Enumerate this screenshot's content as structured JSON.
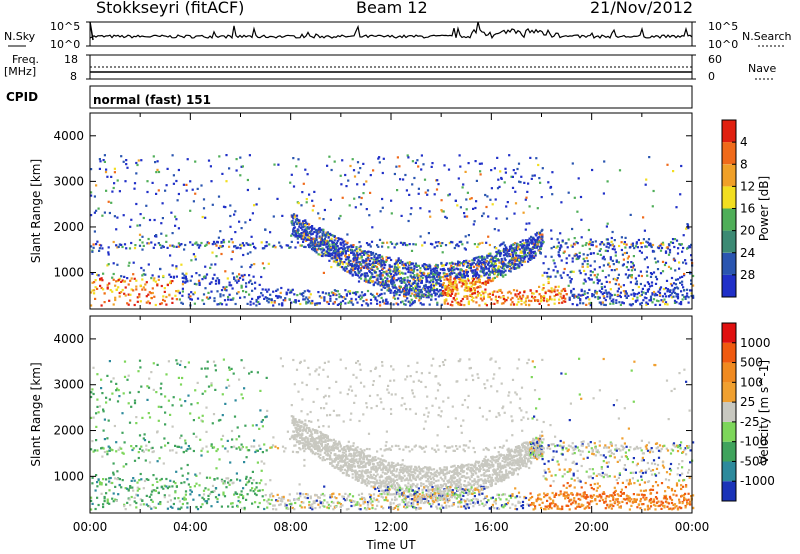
{
  "header": {
    "station": "Stokkseyri (fitACF)",
    "beam": "Beam 12",
    "date": "21/Nov/2012"
  },
  "strip": {
    "nsky_label": "N.Sky",
    "nsky_top": "10^5",
    "nsky_bottom": "10^0",
    "nsearch_label": "N.Search",
    "nsearch_top": "10^5",
    "nsearch_bottom": "10^0",
    "freq_label": "Freq.",
    "freq_unit": "[MHz]",
    "freq_top": "18",
    "freq_bottom": "8",
    "nave_label": "Nave",
    "nave_top": "60",
    "nave_bottom": "0",
    "cpid_label": "CPID",
    "cpid_value": "normal (fast) 151"
  },
  "chart_data": [
    {
      "type": "heatmap",
      "name": "Power",
      "ylabel": "Slant Range [km]",
      "xlabel": "",
      "ylim": [
        200,
        4500
      ],
      "yticks": [
        "4000",
        "3000",
        "2000",
        "1000"
      ],
      "xlim": [
        "00:00",
        "24:00"
      ],
      "colorbar": {
        "label": "Power [dB]",
        "colors": [
          "#2030c8",
          "#2a55b0",
          "#3c8a74",
          "#4fae58",
          "#f2de20",
          "#f0a028",
          "#f06a1a",
          "#e02010"
        ],
        "tick_labels": [
          "4",
          "8",
          "12",
          "16",
          "20",
          "24",
          "28"
        ]
      }
    },
    {
      "type": "heatmap",
      "name": "Velocity",
      "ylabel": "Slant Range [km]",
      "xlabel": "Time UT",
      "ylim": [
        200,
        4500
      ],
      "yticks": [
        "4000",
        "3000",
        "2000",
        "1000"
      ],
      "xlim": [
        "00:00",
        "24:00"
      ],
      "xticks": [
        "00:00",
        "04:00",
        "08:00",
        "12:00",
        "16:00",
        "20:00",
        "00:00"
      ],
      "colorbar": {
        "label": "Velocity [m s^-1]",
        "colors": [
          "#1a33b8",
          "#2d8a9c",
          "#3fa35c",
          "#7dd65a",
          "#c8c8c0",
          "#f0a030",
          "#f08a20",
          "#f05a10",
          "#e01010"
        ],
        "tick_labels": [
          "1000",
          "500",
          "100",
          "25",
          "-25",
          "-100",
          "-500",
          "-1000"
        ]
      }
    }
  ]
}
